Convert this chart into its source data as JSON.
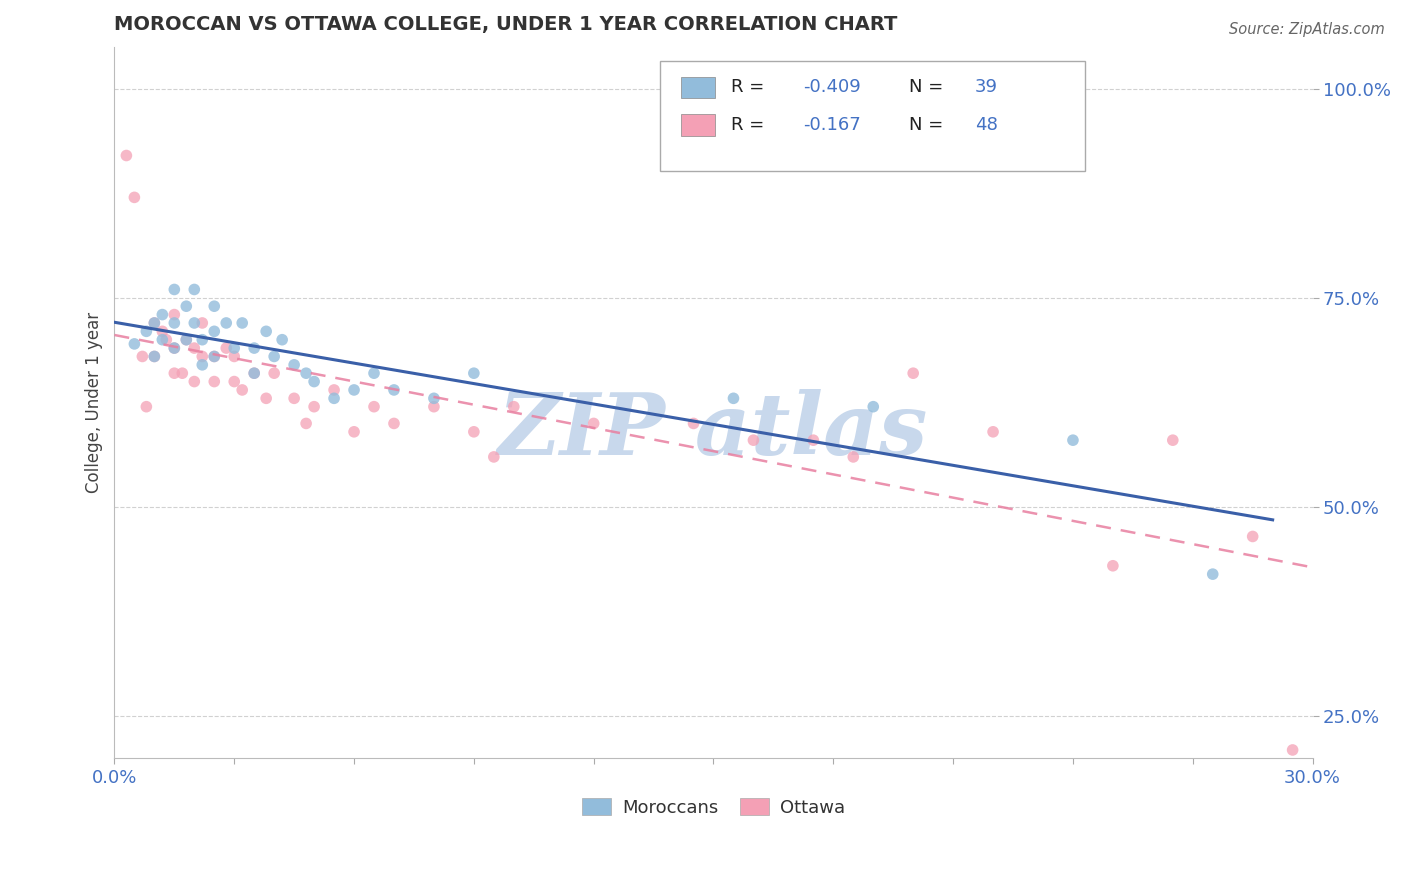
{
  "title": "MOROCCAN VS OTTAWA COLLEGE, UNDER 1 YEAR CORRELATION CHART",
  "source": "Source: ZipAtlas.com",
  "ylabel": "College, Under 1 year",
  "xlim": [
    0.0,
    0.3
  ],
  "ylim": [
    0.2,
    1.05
  ],
  "xtick_positions": [
    0.0,
    0.03,
    0.06,
    0.09,
    0.12,
    0.15,
    0.18,
    0.21,
    0.24,
    0.27,
    0.3
  ],
  "ytick_positions": [
    0.25,
    0.5,
    0.75,
    1.0
  ],
  "yticklabels": [
    "25.0%",
    "50.0%",
    "75.0%",
    "100.0%"
  ],
  "blue_color": "#92bcdb",
  "pink_color": "#f4a0b5",
  "blue_line_color": "#3a5fa8",
  "pink_line_color": "#e87fa0",
  "legend_label1": "Moroccans",
  "legend_label2": "Ottawa",
  "blue_x": [
    0.005,
    0.008,
    0.01,
    0.01,
    0.012,
    0.012,
    0.015,
    0.015,
    0.015,
    0.018,
    0.018,
    0.02,
    0.02,
    0.022,
    0.022,
    0.025,
    0.025,
    0.025,
    0.028,
    0.03,
    0.032,
    0.035,
    0.035,
    0.038,
    0.04,
    0.042,
    0.045,
    0.048,
    0.05,
    0.055,
    0.06,
    0.065,
    0.07,
    0.08,
    0.09,
    0.155,
    0.19,
    0.24,
    0.275
  ],
  "blue_y": [
    0.695,
    0.71,
    0.72,
    0.68,
    0.73,
    0.7,
    0.76,
    0.72,
    0.69,
    0.74,
    0.7,
    0.76,
    0.72,
    0.7,
    0.67,
    0.74,
    0.71,
    0.68,
    0.72,
    0.69,
    0.72,
    0.69,
    0.66,
    0.71,
    0.68,
    0.7,
    0.67,
    0.66,
    0.65,
    0.63,
    0.64,
    0.66,
    0.64,
    0.63,
    0.66,
    0.63,
    0.62,
    0.58,
    0.42
  ],
  "pink_x": [
    0.003,
    0.005,
    0.007,
    0.008,
    0.01,
    0.01,
    0.012,
    0.013,
    0.015,
    0.015,
    0.015,
    0.017,
    0.018,
    0.02,
    0.02,
    0.022,
    0.022,
    0.025,
    0.025,
    0.028,
    0.03,
    0.03,
    0.032,
    0.035,
    0.038,
    0.04,
    0.045,
    0.048,
    0.05,
    0.055,
    0.06,
    0.065,
    0.07,
    0.08,
    0.09,
    0.095,
    0.1,
    0.12,
    0.145,
    0.16,
    0.175,
    0.185,
    0.2,
    0.22,
    0.25,
    0.265,
    0.285,
    0.295
  ],
  "pink_y": [
    0.92,
    0.87,
    0.68,
    0.62,
    0.72,
    0.68,
    0.71,
    0.7,
    0.73,
    0.69,
    0.66,
    0.66,
    0.7,
    0.69,
    0.65,
    0.72,
    0.68,
    0.68,
    0.65,
    0.69,
    0.68,
    0.65,
    0.64,
    0.66,
    0.63,
    0.66,
    0.63,
    0.6,
    0.62,
    0.64,
    0.59,
    0.62,
    0.6,
    0.62,
    0.59,
    0.56,
    0.62,
    0.6,
    0.6,
    0.58,
    0.58,
    0.56,
    0.66,
    0.59,
    0.43,
    0.58,
    0.465,
    0.21
  ],
  "watermark_text": "ZIP atlas",
  "watermark_color": "#c8d8ec",
  "background_color": "#ffffff",
  "grid_color": "#cccccc"
}
